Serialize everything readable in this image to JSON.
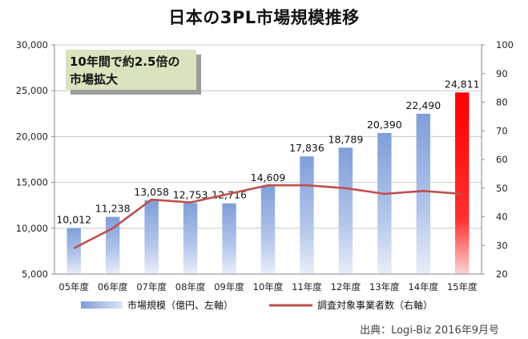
{
  "chart_data": {
    "type": "bar",
    "title": "日本の3PL市場規模推移",
    "categories": [
      "05年度",
      "06年度",
      "07年度",
      "08年度",
      "09年度",
      "10年度",
      "11年度",
      "12年度",
      "13年度",
      "14年度",
      "15年度"
    ],
    "series": [
      {
        "name": "市場規模（億円、左軸）",
        "type": "bar",
        "axis": "left",
        "values": [
          10012,
          11238,
          13058,
          12753,
          12716,
          14609,
          17836,
          18789,
          20390,
          22490,
          24811
        ],
        "labels": [
          "10,012",
          "11,238",
          "13,058",
          "12,753",
          "12,716",
          "14,609",
          "17,836",
          "18,789",
          "20,390",
          "22,490",
          "24,811"
        ],
        "color": "#7f9fd8",
        "highlight_color": "#ff0000"
      },
      {
        "name": "調査対象事業者数（右軸）",
        "type": "line",
        "axis": "right",
        "values": [
          29,
          36,
          46,
          45,
          48,
          51,
          51,
          50,
          48,
          49,
          48
        ],
        "color": "#c0504d"
      }
    ],
    "ylim_left": [
      5000,
      30000
    ],
    "yticks_left": [
      "5,000",
      "10,000",
      "15,000",
      "20,000",
      "25,000",
      "30,000"
    ],
    "ylim_right": [
      20,
      100
    ],
    "yticks_right": [
      "20",
      "30",
      "40",
      "50",
      "60",
      "70",
      "80",
      "90",
      "100"
    ],
    "annotation": {
      "line1": "10年間で約2.5倍の",
      "line2": "市場拡大",
      "background": "#d7e4bd"
    },
    "grid": true,
    "legend_position": "bottom",
    "source": "出典：Logi-Biz 2016年9月号"
  }
}
